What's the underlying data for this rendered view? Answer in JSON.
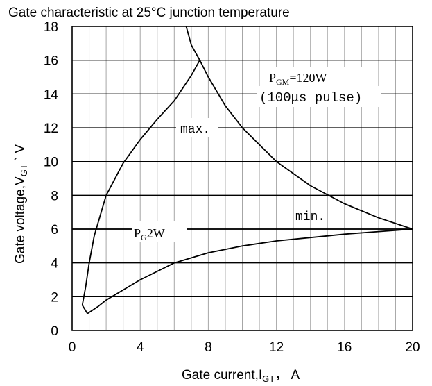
{
  "chart_data": {
    "type": "line",
    "title": "Gate characteristic at 25°C junction temperature",
    "xlabel": "Gate current,I",
    "xlabel_sub": "GT",
    "xlabel_unit": "， A",
    "ylabel": "Gate voltage,V",
    "ylabel_sub": "GT",
    "ylabel_unit": "ˋ V",
    "xlim": [
      0,
      20
    ],
    "ylim": [
      0,
      18
    ],
    "xticks": [
      0,
      4,
      8,
      12,
      16,
      20
    ],
    "yticks": [
      0,
      2,
      4,
      6,
      8,
      10,
      12,
      14,
      16,
      18
    ],
    "grid": true,
    "series": [
      {
        "name": "max.",
        "points": [
          [
            0.6,
            1.5
          ],
          [
            0.8,
            2.6
          ],
          [
            1.0,
            4.0
          ],
          [
            1.3,
            5.6
          ],
          [
            2.0,
            8.0
          ],
          [
            3.0,
            9.9
          ],
          [
            4.0,
            11.3
          ],
          [
            5.0,
            12.5
          ],
          [
            6.0,
            13.6
          ],
          [
            7.0,
            15.1
          ],
          [
            7.5,
            16.0
          ]
        ]
      },
      {
        "name": "min.",
        "points": [
          [
            0.6,
            1.5
          ],
          [
            0.9,
            1.0
          ],
          [
            1.5,
            1.4
          ],
          [
            2.0,
            1.8
          ],
          [
            3.0,
            2.4
          ],
          [
            4.0,
            3.0
          ],
          [
            6.0,
            4.0
          ],
          [
            8.0,
            4.6
          ],
          [
            10.0,
            5.0
          ],
          [
            12.0,
            5.3
          ],
          [
            14.0,
            5.5
          ],
          [
            16.0,
            5.7
          ],
          [
            18.0,
            5.85
          ],
          [
            20.0,
            6.0
          ]
        ]
      },
      {
        "name": "P_GM=120W (100μs pulse)",
        "points": [
          [
            6.7,
            18.0
          ],
          [
            7.0,
            16.9
          ],
          [
            7.5,
            16.0
          ],
          [
            8.0,
            15.0
          ],
          [
            9.0,
            13.3
          ],
          [
            10.0,
            12.0
          ],
          [
            12.0,
            10.0
          ],
          [
            14.0,
            8.57
          ],
          [
            16.0,
            7.5
          ],
          [
            18.0,
            6.67
          ],
          [
            20.0,
            6.0
          ]
        ]
      },
      {
        "name": "P_G 2W",
        "points": [
          [
            0.0,
            6.0
          ],
          [
            20.0,
            6.0
          ]
        ]
      }
    ],
    "annotations": {
      "pgm_main": "P",
      "pgm_sub": "GM",
      "pgm_rest": "=120W",
      "pgm_pulse": "(100μs pulse)",
      "max_label": "max.",
      "min_label": "min.",
      "pg_main": "P",
      "pg_sub": "G",
      "pg_rest": "2W"
    }
  }
}
